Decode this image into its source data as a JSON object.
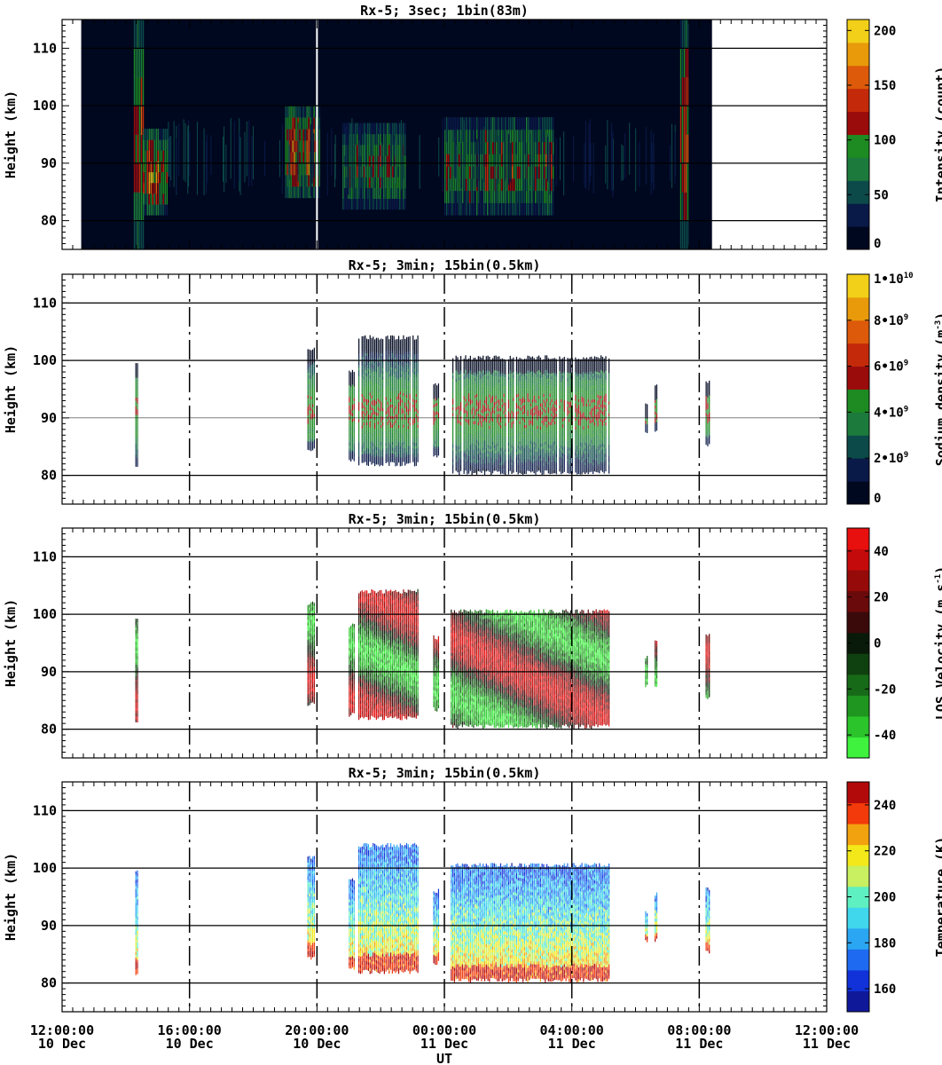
{
  "figure": {
    "xlabel": "UT",
    "time_ticks": [
      {
        "hour": 12,
        "time": "12:00:00",
        "date": "10 Dec"
      },
      {
        "hour": 16,
        "time": "16:00:00",
        "date": "10 Dec"
      },
      {
        "hour": 20,
        "time": "20:00:00",
        "date": "10 Dec"
      },
      {
        "hour": 24,
        "time": "00:00:00",
        "date": "11 Dec"
      },
      {
        "hour": 28,
        "time": "04:00:00",
        "date": "11 Dec"
      },
      {
        "hour": 32,
        "time": "08:00:00",
        "date": "11 Dec"
      },
      {
        "hour": 36,
        "time": "12:00:00",
        "date": "11 Dec"
      }
    ]
  },
  "chart_data": [
    {
      "type": "heatmap",
      "title": "Rx-5;  3sec; 1bin(83m)",
      "ylabel": "Height (km)",
      "xlim_hours": [
        12.6,
        36
      ],
      "ylim": [
        75,
        115
      ],
      "ytick_values": [
        80,
        90,
        100,
        110
      ],
      "grid_lines": [
        80,
        90,
        100,
        110
      ],
      "colorbar": {
        "label": "Intensity (count)",
        "range": [
          0,
          210
        ],
        "ticks": [
          {
            "v": 0,
            "t": "0"
          },
          {
            "v": 50,
            "t": "50"
          },
          {
            "v": 100,
            "t": "100"
          },
          {
            "v": 150,
            "t": "150"
          },
          {
            "v": 200,
            "t": "200"
          }
        ],
        "colors": [
          "#000820",
          "#0a1a48",
          "#0c4a4a",
          "#1c7a3c",
          "#1d8a22",
          "#9a0c0c",
          "#c42a0a",
          "#dd5a0a",
          "#e89a0a",
          "#f2cf18"
        ]
      },
      "data_window_hours": [
        12.6,
        32.4
      ],
      "features": [
        {
          "t0": 14.25,
          "t1": 14.55,
          "z0": 75,
          "z1": 115,
          "level": 0.45
        },
        {
          "t0": 14.55,
          "t1": 15.3,
          "z0": 81,
          "z1": 96,
          "level": 0.6
        },
        {
          "t0": 19.0,
          "t1": 20.1,
          "z0": 84,
          "z1": 100,
          "level": 0.55
        },
        {
          "t0": 20.8,
          "t1": 22.8,
          "z0": 82,
          "z1": 97,
          "level": 0.4
        },
        {
          "t0": 24.0,
          "t1": 27.4,
          "z0": 81,
          "z1": 98,
          "level": 0.45
        },
        {
          "t0": 31.4,
          "t1": 31.65,
          "z0": 75,
          "z1": 115,
          "level": 0.8
        }
      ]
    },
    {
      "type": "heatmap",
      "title": "Rx-5; 3min; 15bin(0.5km)",
      "ylabel": "Height (km)",
      "xlim_hours": [
        12,
        36
      ],
      "ylim": [
        75,
        115
      ],
      "ytick_values": [
        80,
        90,
        100,
        110
      ],
      "grid_lines": [
        80,
        90,
        100,
        110
      ],
      "colorbar": {
        "label": "Sodium density (m^-3)",
        "range": [
          0,
          10000000000
        ],
        "ticks": [
          {
            "v": 0,
            "t": "0"
          },
          {
            "v": 2000000000,
            "t": "2•10^9"
          },
          {
            "v": 4000000000,
            "t": "4•10^9"
          },
          {
            "v": 6000000000,
            "t": "6•10^9"
          },
          {
            "v": 8000000000,
            "t": "8•10^9"
          },
          {
            "v": 10000000000,
            "t": "1•10^10"
          }
        ],
        "colors": [
          "#000820",
          "#0a1a48",
          "#0c4a4a",
          "#1c7a3c",
          "#1d8a22",
          "#9a0c0c",
          "#c42a0a",
          "#dd5a0a",
          "#e89a0a",
          "#f2cf18"
        ]
      },
      "profiles": [
        {
          "t0": 14.3,
          "t1": 14.4,
          "z0": 81.5,
          "z1": 99.5
        },
        {
          "t0": 19.7,
          "t1": 19.95,
          "z0": 84.5,
          "z1": 102
        },
        {
          "t0": 21.0,
          "t1": 21.2,
          "z0": 82.5,
          "z1": 98
        },
        {
          "t0": 21.3,
          "t1": 23.2,
          "z0": 82,
          "z1": 104
        },
        {
          "t0": 23.65,
          "t1": 23.85,
          "z0": 83.5,
          "z1": 96
        },
        {
          "t0": 24.2,
          "t1": 29.2,
          "z0": 80.5,
          "z1": 100.5
        },
        {
          "t0": 30.3,
          "t1": 30.4,
          "z0": 87.5,
          "z1": 92.5
        },
        {
          "t0": 30.6,
          "t1": 30.7,
          "z0": 87.5,
          "z1": 95.5
        },
        {
          "t0": 32.2,
          "t1": 32.35,
          "z0": 85.5,
          "z1": 96.5
        }
      ]
    },
    {
      "type": "heatmap",
      "title": "Rx-5; 3min; 15bin(0.5km)",
      "ylabel": "Height (km)",
      "xlim_hours": [
        12,
        36
      ],
      "ylim": [
        75,
        115
      ],
      "ytick_values": [
        80,
        90,
        100,
        110
      ],
      "grid_lines": [
        80,
        90,
        100,
        110
      ],
      "colorbar": {
        "label": "LOS Velocity (m s^-1)",
        "range": [
          -50,
          50
        ],
        "ticks": [
          {
            "v": -40,
            "t": "-40"
          },
          {
            "v": -20,
            "t": "-20"
          },
          {
            "v": 0,
            "t": "0"
          },
          {
            "v": 20,
            "t": "20"
          },
          {
            "v": 40,
            "t": "40"
          }
        ],
        "colors": [
          "#3ef23e",
          "#2bc42b",
          "#1f961f",
          "#176a17",
          "#0f400f",
          "#0a1a0a",
          "#3a0a0a",
          "#6a0a0a",
          "#960a0a",
          "#c40a0a",
          "#e80f0f"
        ]
      },
      "profiles": [
        {
          "t0": 14.3,
          "t1": 14.4,
          "z0": 81.5,
          "z1": 99.5
        },
        {
          "t0": 19.7,
          "t1": 19.95,
          "z0": 84.5,
          "z1": 102
        },
        {
          "t0": 21.0,
          "t1": 21.2,
          "z0": 82.5,
          "z1": 98
        },
        {
          "t0": 21.3,
          "t1": 23.2,
          "z0": 82,
          "z1": 104
        },
        {
          "t0": 23.65,
          "t1": 23.85,
          "z0": 83.5,
          "z1": 96
        },
        {
          "t0": 24.2,
          "t1": 29.2,
          "z0": 80.5,
          "z1": 100.5
        },
        {
          "t0": 30.3,
          "t1": 30.4,
          "z0": 87.5,
          "z1": 92.5
        },
        {
          "t0": 30.6,
          "t1": 30.7,
          "z0": 87.5,
          "z1": 95.5
        },
        {
          "t0": 32.2,
          "t1": 32.35,
          "z0": 85.5,
          "z1": 96.5
        }
      ]
    },
    {
      "type": "heatmap",
      "title": "Rx-5; 3min; 15bin(0.5km)",
      "ylabel": "Height (km)",
      "xlim_hours": [
        12,
        36
      ],
      "ylim": [
        75,
        115
      ],
      "ytick_values": [
        80,
        90,
        100,
        110
      ],
      "grid_lines": [
        80,
        90,
        100,
        110
      ],
      "colorbar": {
        "label": "Temperature (K)",
        "range": [
          150,
          250
        ],
        "ticks": [
          {
            "v": 160,
            "t": "160"
          },
          {
            "v": 180,
            "t": "180"
          },
          {
            "v": 200,
            "t": "200"
          },
          {
            "v": 220,
            "t": "220"
          },
          {
            "v": 240,
            "t": "240"
          }
        ],
        "colors": [
          "#10189a",
          "#1032d8",
          "#1e6af0",
          "#2aa6f2",
          "#40d6ec",
          "#5ef0c0",
          "#c8f060",
          "#f2e81a",
          "#f2a10f",
          "#f23a0a",
          "#b20a0a"
        ]
      },
      "profiles": [
        {
          "t0": 14.3,
          "t1": 14.4,
          "z0": 81.5,
          "z1": 99.5
        },
        {
          "t0": 19.7,
          "t1": 19.95,
          "z0": 84.5,
          "z1": 102
        },
        {
          "t0": 21.0,
          "t1": 21.2,
          "z0": 82.5,
          "z1": 98
        },
        {
          "t0": 21.3,
          "t1": 23.2,
          "z0": 82,
          "z1": 104
        },
        {
          "t0": 23.65,
          "t1": 23.85,
          "z0": 83.5,
          "z1": 96
        },
        {
          "t0": 24.2,
          "t1": 29.2,
          "z0": 80.5,
          "z1": 100.5
        },
        {
          "t0": 30.3,
          "t1": 30.4,
          "z0": 87.5,
          "z1": 92.5
        },
        {
          "t0": 30.6,
          "t1": 30.7,
          "z0": 87.5,
          "z1": 95.5
        },
        {
          "t0": 32.2,
          "t1": 32.35,
          "z0": 85.5,
          "z1": 96.5
        }
      ]
    }
  ]
}
